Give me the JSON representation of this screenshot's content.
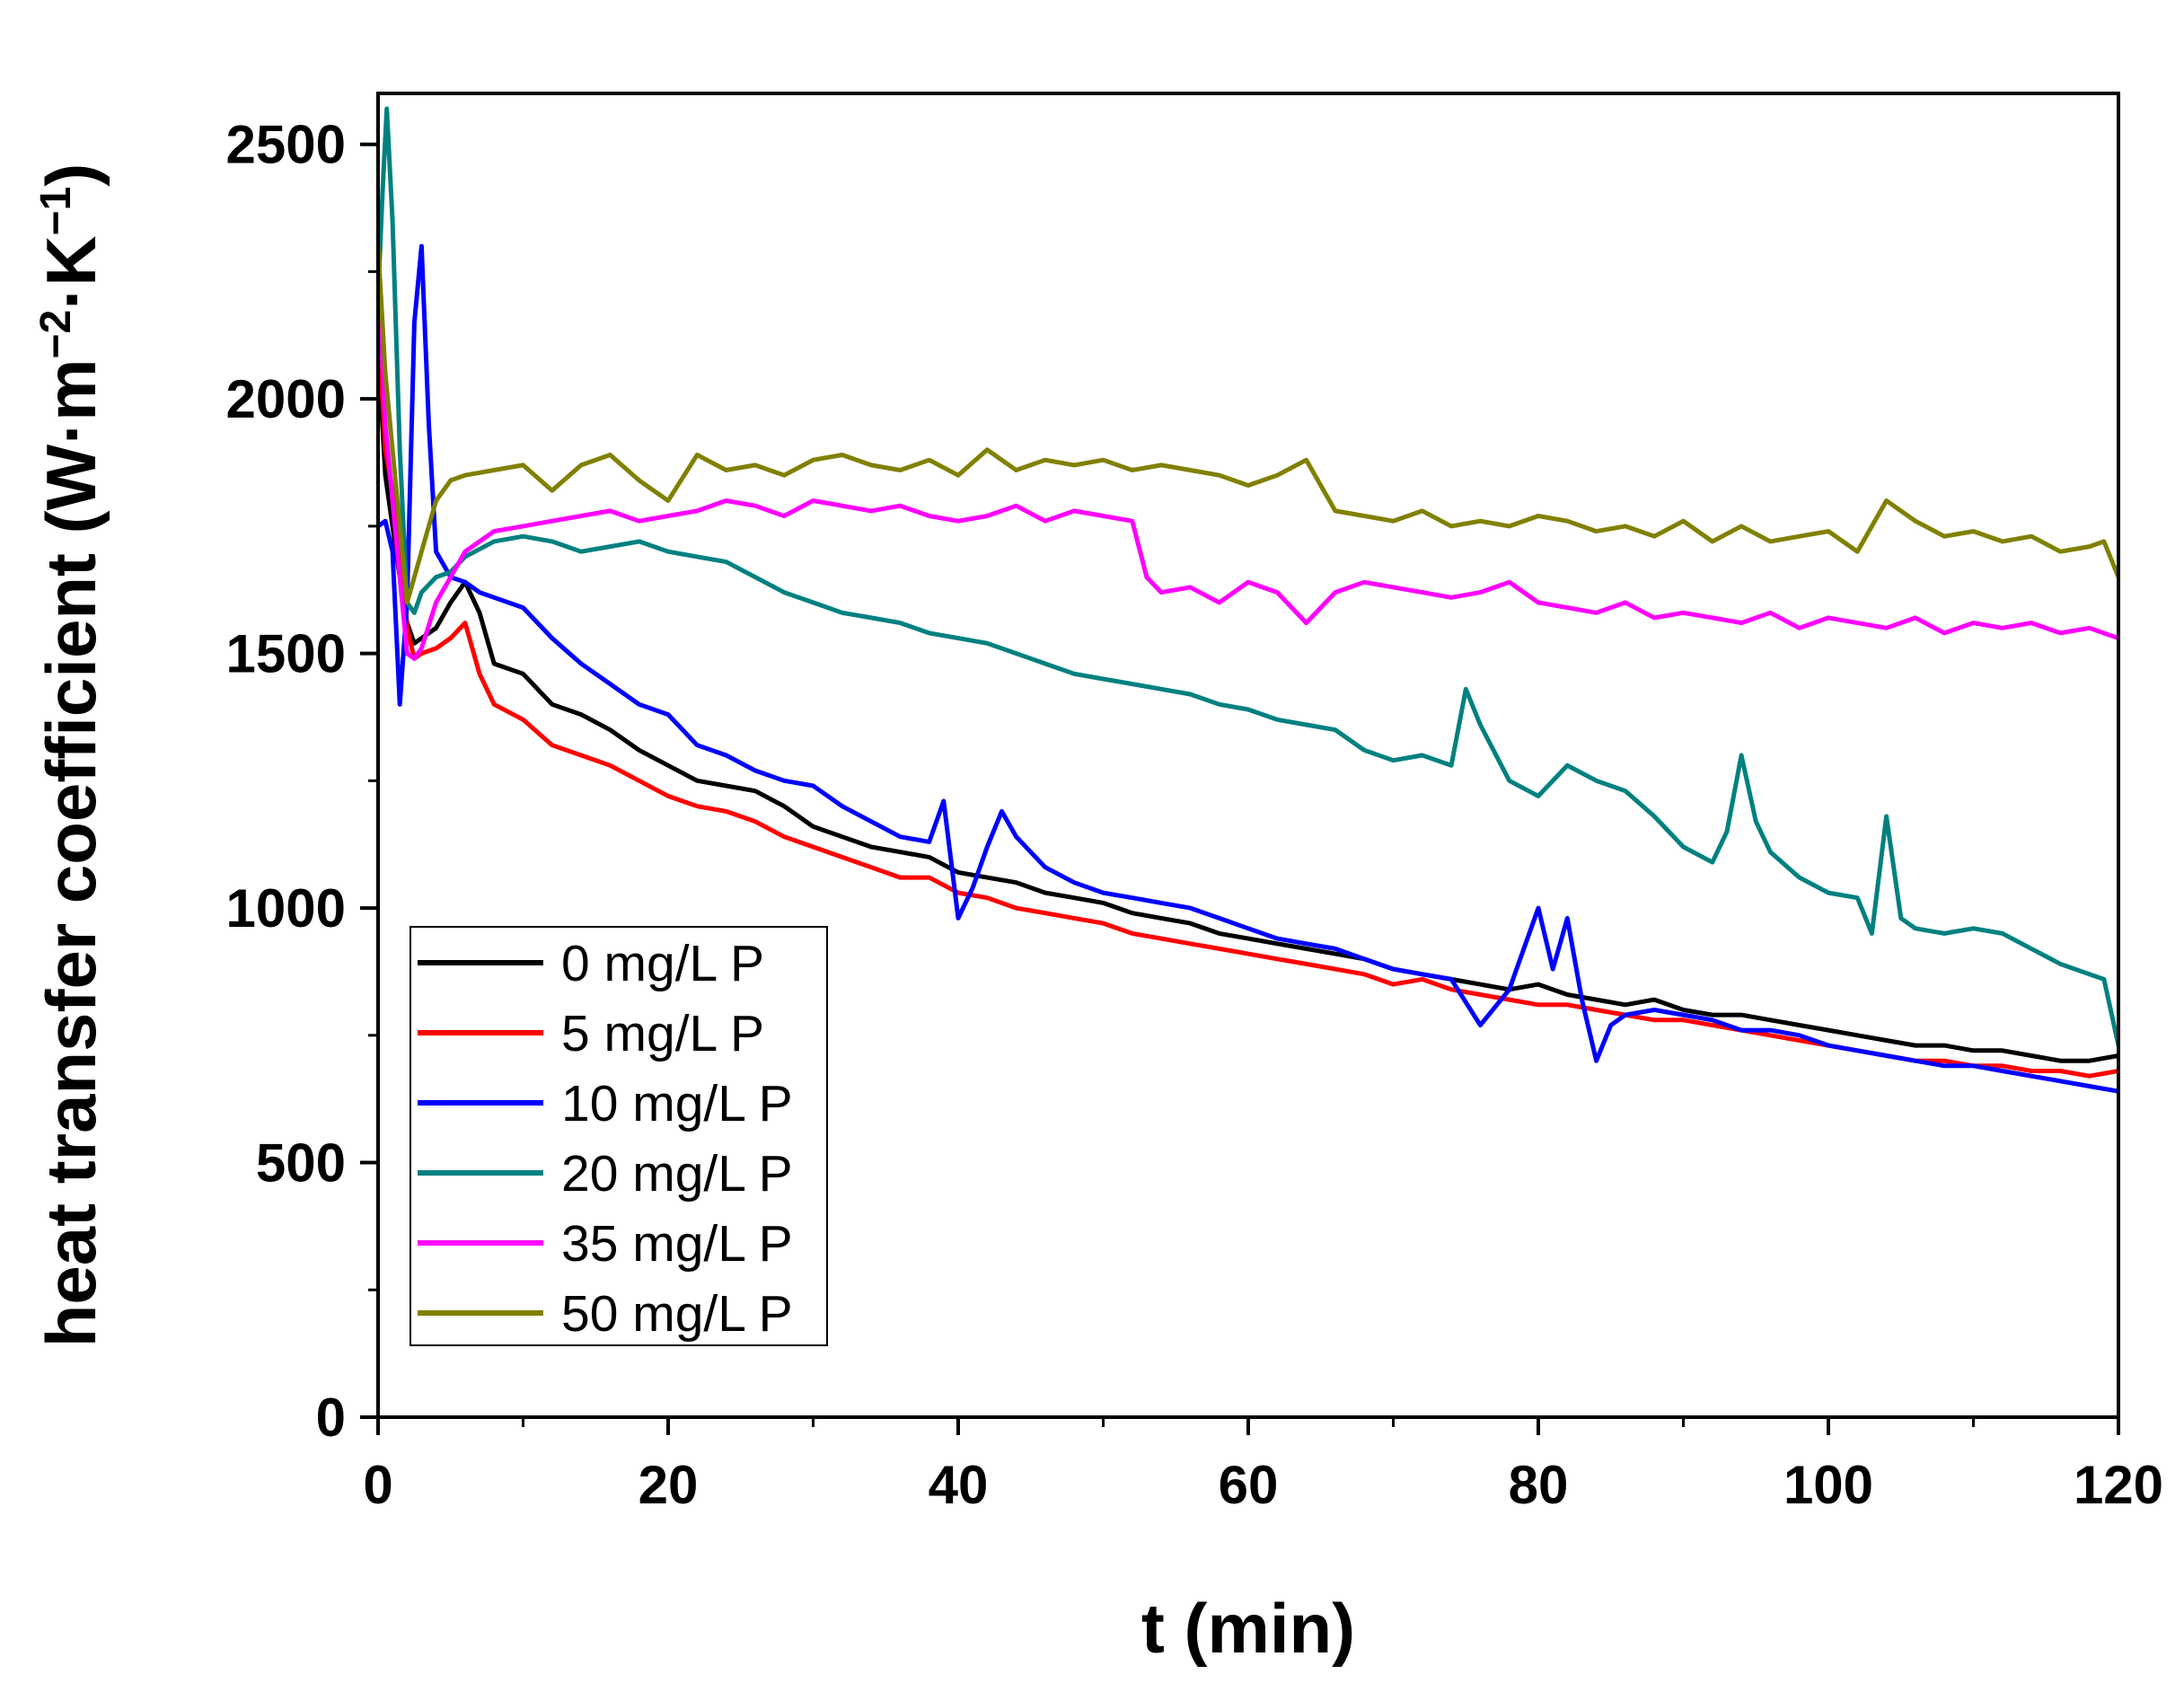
{
  "chart_data": {
    "type": "line",
    "title": "",
    "xlabel": "t (min)",
    "ylabel_main": "heat transfer coefficient (W·m",
    "ylabel_sup1": "−2",
    "ylabel_mid": "·K",
    "ylabel_sup2": "−1",
    "ylabel_end": ")",
    "xlim": [
      0,
      120
    ],
    "ylim": [
      0,
      2600
    ],
    "xticks": [
      0,
      20,
      40,
      60,
      80,
      100,
      120
    ],
    "yticks": [
      0,
      500,
      1000,
      1500,
      2000,
      2500
    ],
    "legend_position": "lower-left",
    "series": [
      {
        "name": "0 mg/L P",
        "color": "#000000",
        "x": [
          0,
          0.5,
          1,
          1.5,
          2,
          2.5,
          3,
          4,
          5,
          6,
          7,
          8,
          10,
          12,
          14,
          16,
          18,
          20,
          22,
          24,
          26,
          28,
          30,
          32,
          34,
          36,
          38,
          40,
          42,
          44,
          46,
          48,
          50,
          52,
          54,
          56,
          58,
          60,
          62,
          64,
          66,
          68,
          70,
          72,
          74,
          76,
          78,
          80,
          82,
          84,
          86,
          88,
          90,
          92,
          94,
          96,
          98,
          100,
          102,
          104,
          106,
          108,
          110,
          112,
          114,
          116,
          118,
          120
        ],
        "y": [
          2100,
          1850,
          1750,
          1650,
          1560,
          1520,
          1530,
          1550,
          1600,
          1640,
          1580,
          1480,
          1460,
          1400,
          1380,
          1350,
          1310,
          1280,
          1250,
          1240,
          1230,
          1200,
          1160,
          1140,
          1120,
          1110,
          1100,
          1070,
          1060,
          1050,
          1030,
          1020,
          1010,
          990,
          980,
          970,
          950,
          940,
          930,
          920,
          910,
          900,
          880,
          870,
          860,
          850,
          840,
          850,
          830,
          820,
          810,
          820,
          800,
          790,
          790,
          780,
          770,
          760,
          750,
          740,
          730,
          730,
          720,
          720,
          710,
          700,
          700,
          710
        ]
      },
      {
        "name": "5 mg/L P",
        "color": "#ff0000",
        "x": [
          0,
          0.5,
          1,
          1.5,
          2,
          2.5,
          3,
          4,
          5,
          6,
          7,
          8,
          10,
          12,
          14,
          16,
          18,
          20,
          22,
          24,
          26,
          28,
          30,
          32,
          34,
          36,
          38,
          40,
          42,
          44,
          46,
          48,
          50,
          52,
          54,
          56,
          58,
          60,
          62,
          64,
          66,
          68,
          70,
          72,
          74,
          76,
          78,
          80,
          82,
          84,
          86,
          88,
          90,
          92,
          94,
          96,
          98,
          100,
          102,
          104,
          106,
          108,
          110,
          112,
          114,
          116,
          118,
          120
        ],
        "y": [
          2150,
          1900,
          1820,
          1700,
          1550,
          1490,
          1500,
          1510,
          1530,
          1560,
          1460,
          1400,
          1370,
          1320,
          1300,
          1280,
          1250,
          1220,
          1200,
          1190,
          1170,
          1140,
          1120,
          1100,
          1080,
          1060,
          1060,
          1030,
          1020,
          1000,
          990,
          980,
          970,
          950,
          940,
          930,
          920,
          910,
          900,
          890,
          880,
          870,
          850,
          860,
          840,
          830,
          820,
          810,
          810,
          800,
          790,
          780,
          780,
          770,
          760,
          750,
          740,
          730,
          720,
          710,
          700,
          700,
          690,
          690,
          680,
          680,
          670,
          680
        ]
      },
      {
        "name": "10 mg/L P",
        "color": "#0000ff",
        "x": [
          0,
          0.5,
          1,
          1.5,
          2,
          2.5,
          3,
          3.5,
          4,
          5,
          6,
          7,
          8,
          10,
          12,
          14,
          16,
          18,
          20,
          22,
          24,
          26,
          28,
          30,
          32,
          34,
          36,
          38,
          39,
          40,
          41,
          42,
          43,
          44,
          46,
          48,
          50,
          52,
          54,
          56,
          58,
          60,
          62,
          64,
          66,
          68,
          70,
          72,
          74,
          76,
          78,
          80,
          81,
          82,
          83,
          84,
          85,
          86,
          88,
          90,
          92,
          94,
          96,
          98,
          100,
          102,
          104,
          106,
          108,
          110,
          112,
          114,
          116,
          118,
          120
        ],
        "y": [
          1750,
          1760,
          1700,
          1400,
          1600,
          2150,
          2300,
          1950,
          1700,
          1650,
          1640,
          1620,
          1610,
          1590,
          1530,
          1480,
          1440,
          1400,
          1380,
          1320,
          1300,
          1270,
          1250,
          1240,
          1200,
          1170,
          1140,
          1130,
          1210,
          980,
          1040,
          1120,
          1190,
          1140,
          1080,
          1050,
          1030,
          1020,
          1010,
          1000,
          980,
          960,
          940,
          930,
          920,
          900,
          880,
          870,
          860,
          770,
          840,
          1000,
          880,
          980,
          820,
          700,
          770,
          790,
          800,
          790,
          780,
          760,
          760,
          750,
          730,
          720,
          710,
          700,
          690,
          690,
          680,
          670,
          660,
          650,
          640
        ]
      },
      {
        "name": "20 mg/L P",
        "color": "#008080",
        "x": [
          0,
          0.3,
          0.6,
          1,
          1.5,
          2,
          2.5,
          3,
          4,
          5,
          6,
          8,
          10,
          12,
          14,
          16,
          18,
          20,
          22,
          24,
          26,
          28,
          30,
          32,
          34,
          36,
          38,
          40,
          42,
          44,
          46,
          48,
          50,
          52,
          54,
          56,
          58,
          60,
          62,
          64,
          66,
          68,
          70,
          72,
          74,
          75,
          76,
          78,
          80,
          82,
          84,
          86,
          88,
          90,
          92,
          93,
          94,
          95,
          96,
          98,
          100,
          102,
          103,
          104,
          105,
          106,
          108,
          110,
          112,
          114,
          116,
          118,
          119,
          120
        ],
        "y": [
          2200,
          2400,
          2570,
          2350,
          1900,
          1600,
          1580,
          1620,
          1650,
          1660,
          1690,
          1720,
          1730,
          1720,
          1700,
          1710,
          1720,
          1700,
          1690,
          1680,
          1650,
          1620,
          1600,
          1580,
          1570,
          1560,
          1540,
          1530,
          1520,
          1500,
          1480,
          1460,
          1450,
          1440,
          1430,
          1420,
          1400,
          1390,
          1370,
          1360,
          1350,
          1310,
          1290,
          1300,
          1280,
          1430,
          1360,
          1250,
          1220,
          1280,
          1250,
          1230,
          1180,
          1120,
          1090,
          1150,
          1300,
          1170,
          1110,
          1060,
          1030,
          1020,
          950,
          1180,
          980,
          960,
          950,
          960,
          950,
          920,
          890,
          870,
          860,
          730
        ]
      },
      {
        "name": "35 mg/L P",
        "color": "#ff00ff",
        "x": [
          0,
          0.5,
          1,
          1.5,
          2,
          2.5,
          3,
          4,
          5,
          6,
          7,
          8,
          10,
          12,
          14,
          16,
          18,
          20,
          22,
          24,
          26,
          28,
          30,
          32,
          34,
          36,
          38,
          40,
          42,
          44,
          46,
          48,
          50,
          52,
          53,
          54,
          56,
          58,
          60,
          62,
          64,
          66,
          68,
          70,
          72,
          74,
          76,
          78,
          80,
          82,
          84,
          86,
          88,
          90,
          92,
          94,
          96,
          98,
          100,
          102,
          104,
          106,
          108,
          110,
          112,
          114,
          116,
          118,
          120
        ],
        "y": [
          2250,
          1950,
          1800,
          1650,
          1500,
          1490,
          1510,
          1600,
          1650,
          1700,
          1720,
          1740,
          1750,
          1760,
          1770,
          1780,
          1760,
          1770,
          1780,
          1800,
          1790,
          1770,
          1800,
          1790,
          1780,
          1790,
          1770,
          1760,
          1770,
          1790,
          1760,
          1780,
          1770,
          1760,
          1650,
          1620,
          1630,
          1600,
          1640,
          1620,
          1560,
          1620,
          1640,
          1630,
          1620,
          1610,
          1620,
          1640,
          1600,
          1590,
          1580,
          1600,
          1570,
          1580,
          1570,
          1560,
          1580,
          1550,
          1570,
          1560,
          1550,
          1570,
          1540,
          1560,
          1550,
          1560,
          1540,
          1550,
          1530
        ]
      },
      {
        "name": "50 mg/L P",
        "color": "#808000",
        "x": [
          0,
          0.5,
          1,
          1.5,
          2,
          2.5,
          3,
          4,
          5,
          6,
          8,
          10,
          12,
          14,
          16,
          18,
          20,
          22,
          24,
          26,
          28,
          30,
          32,
          34,
          36,
          38,
          40,
          42,
          44,
          46,
          48,
          50,
          52,
          54,
          56,
          58,
          60,
          62,
          64,
          66,
          68,
          70,
          72,
          74,
          76,
          78,
          80,
          82,
          84,
          86,
          88,
          90,
          92,
          94,
          96,
          98,
          100,
          102,
          104,
          106,
          108,
          110,
          112,
          114,
          116,
          118,
          119,
          120
        ],
        "y": [
          2300,
          2050,
          1900,
          1750,
          1600,
          1650,
          1700,
          1800,
          1840,
          1850,
          1860,
          1870,
          1820,
          1870,
          1890,
          1840,
          1800,
          1890,
          1860,
          1870,
          1850,
          1880,
          1890,
          1870,
          1860,
          1880,
          1850,
          1900,
          1860,
          1880,
          1870,
          1880,
          1860,
          1870,
          1860,
          1850,
          1830,
          1850,
          1880,
          1780,
          1770,
          1760,
          1780,
          1750,
          1760,
          1750,
          1770,
          1760,
          1740,
          1750,
          1730,
          1760,
          1720,
          1750,
          1720,
          1730,
          1740,
          1700,
          1800,
          1760,
          1730,
          1740,
          1720,
          1730,
          1700,
          1710,
          1720,
          1650
        ]
      }
    ]
  }
}
